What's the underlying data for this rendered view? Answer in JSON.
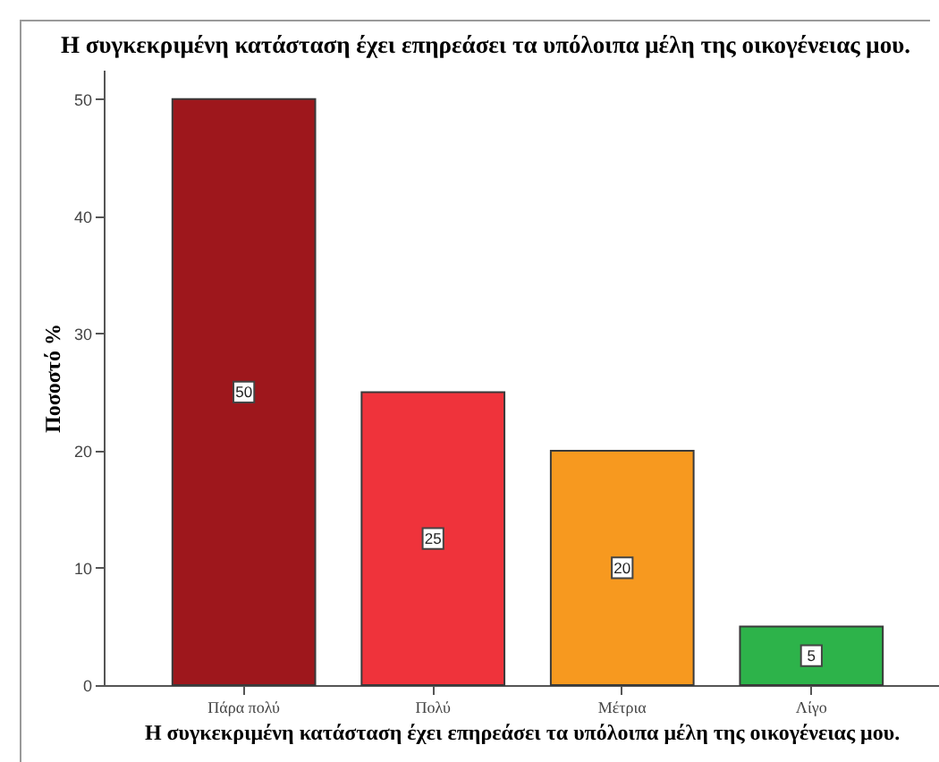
{
  "chart_data": {
    "type": "bar",
    "title": "Η συγκεκριμένη κατάσταση έχει επηρεάσει τα υπόλοιπα μέλη της οικογένειας μου.",
    "xlabel": "Η συγκεκριμένη κατάσταση έχει επηρεάσει τα υπόλοιπα μέλη της οικογένειας μου.",
    "ylabel": "Ποσοστό %",
    "categories": [
      "Πάρα πολύ",
      "Πολύ",
      "Μέτρια",
      "Λίγο"
    ],
    "values": [
      50,
      25,
      20,
      5
    ],
    "colors": [
      "#9e171c",
      "#ef333b",
      "#f7991f",
      "#2db34a"
    ],
    "ylim": [
      0,
      52.5
    ],
    "yticks": [
      0,
      10,
      20,
      30,
      40,
      50
    ],
    "grid": false,
    "data_labels": true
  }
}
